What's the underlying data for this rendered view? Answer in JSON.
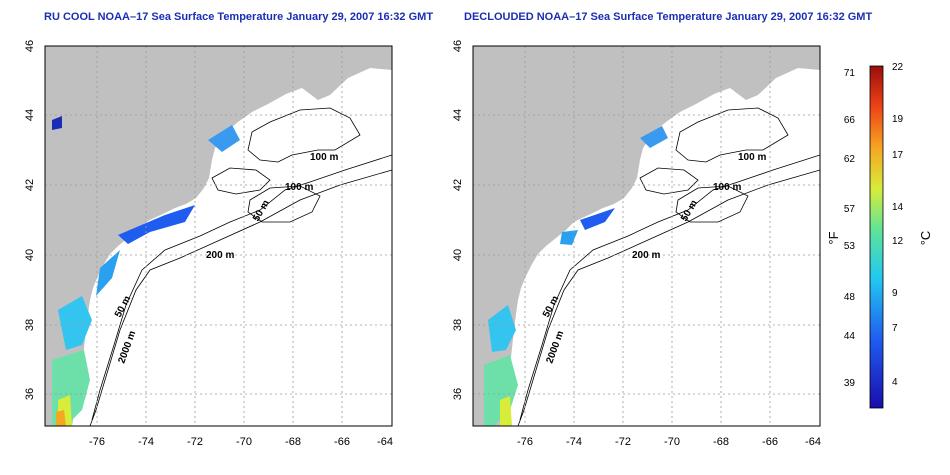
{
  "panels": [
    {
      "title": "RU COOL NOAA–17 Sea Surface Temperature January 29, 2007 16:32 GMT",
      "lon_ticks": [
        "-76",
        "-74",
        "-72",
        "-70",
        "-68",
        "-66",
        "-64"
      ],
      "lat_ticks": [
        "46",
        "44",
        "42",
        "40",
        "38",
        "36"
      ],
      "contour_labels": [
        "100 m",
        "100 m",
        "50 m",
        "200 m",
        "50 m",
        "2000 m"
      ]
    },
    {
      "title": "DECLOUDED NOAA–17 Sea Surface Temperature January 29, 2007 16:32 GMT",
      "lon_ticks": [
        "-76",
        "-74",
        "-72",
        "-70",
        "-68",
        "-66",
        "-64"
      ],
      "lat_ticks": [
        "46",
        "44",
        "42",
        "40",
        "38",
        "36"
      ],
      "contour_labels": [
        "100 m",
        "100 m",
        "50 m",
        "200 m",
        "50 m",
        "2000 m"
      ]
    }
  ],
  "colorbar": {
    "f_label": "°F",
    "c_label": "°C",
    "f_ticks": [
      "71",
      "66",
      "62",
      "57",
      "53",
      "48",
      "44",
      "39"
    ],
    "c_ticks": [
      "22",
      "19",
      "17",
      "14",
      "12",
      "9",
      "7",
      "4"
    ]
  },
  "colors": {
    "land": "#c0c0c0",
    "title": "#1b2fb4",
    "ocean": "#ffffff"
  }
}
